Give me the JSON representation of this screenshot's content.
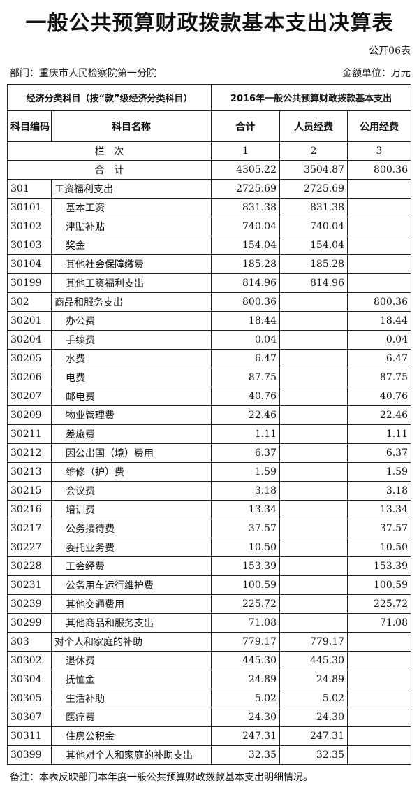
{
  "title": "一般公共预算财政拨款基本支出决算表",
  "form_no": "公开06表",
  "department": "部门：重庆市人民检察院第一分院",
  "unit": "金额单位：万元",
  "header": {
    "econ_class": "经济分类科目（按“款”级经济分类科目）",
    "budget_title": "2016年一般公共预算财政拨款基本支出",
    "code": "科目编码",
    "name": "科目名称",
    "total": "合计",
    "personnel": "人员经费",
    "public": "公用经费"
  },
  "column_row": {
    "label": "栏　次",
    "n1": "1",
    "n2": "2",
    "n3": "3"
  },
  "total_row": {
    "label": "合　计",
    "total": "4305.22",
    "personnel": "3504.87",
    "public": "800.36"
  },
  "rows": [
    {
      "code": "301",
      "name": "工资福利支出",
      "total": "2725.69",
      "personnel": "2725.69",
      "public": ""
    },
    {
      "code": "30101",
      "name": "基本工资",
      "total": "831.38",
      "personnel": "831.38",
      "public": ""
    },
    {
      "code": "30102",
      "name": "津贴补贴",
      "total": "740.04",
      "personnel": "740.04",
      "public": ""
    },
    {
      "code": "30103",
      "name": "奖金",
      "total": "154.04",
      "personnel": "154.04",
      "public": ""
    },
    {
      "code": "30104",
      "name": "其他社会保障缴费",
      "total": "185.28",
      "personnel": "185.28",
      "public": ""
    },
    {
      "code": "30199",
      "name": "其他工资福利支出",
      "total": "814.96",
      "personnel": "814.96",
      "public": ""
    },
    {
      "code": "302",
      "name": "商品和服务支出",
      "total": "800.36",
      "personnel": "",
      "public": "800.36"
    },
    {
      "code": "30201",
      "name": "办公费",
      "total": "18.44",
      "personnel": "",
      "public": "18.44"
    },
    {
      "code": "30204",
      "name": "手续费",
      "total": "0.04",
      "personnel": "",
      "public": "0.04"
    },
    {
      "code": "30205",
      "name": "水费",
      "total": "6.47",
      "personnel": "",
      "public": "6.47"
    },
    {
      "code": "30206",
      "name": "电费",
      "total": "87.75",
      "personnel": "",
      "public": "87.75"
    },
    {
      "code": "30207",
      "name": "邮电费",
      "total": "40.76",
      "personnel": "",
      "public": "40.76"
    },
    {
      "code": "30209",
      "name": "物业管理费",
      "total": "22.46",
      "personnel": "",
      "public": "22.46"
    },
    {
      "code": "30211",
      "name": "差旅费",
      "total": "1.11",
      "personnel": "",
      "public": "1.11"
    },
    {
      "code": "30212",
      "name": "因公出国（境）费用",
      "total": "6.37",
      "personnel": "",
      "public": "6.37"
    },
    {
      "code": "30213",
      "name": "维修（护）费",
      "total": "1.59",
      "personnel": "",
      "public": "1.59"
    },
    {
      "code": "30215",
      "name": "会议费",
      "total": "3.18",
      "personnel": "",
      "public": "3.18"
    },
    {
      "code": "30216",
      "name": "培训费",
      "total": "13.34",
      "personnel": "",
      "public": "13.34"
    },
    {
      "code": "30217",
      "name": "公务接待费",
      "total": "37.57",
      "personnel": "",
      "public": "37.57"
    },
    {
      "code": "30227",
      "name": "委托业务费",
      "total": "10.50",
      "personnel": "",
      "public": "10.50"
    },
    {
      "code": "30228",
      "name": "工会经费",
      "total": "153.39",
      "personnel": "",
      "public": "153.39"
    },
    {
      "code": "30231",
      "name": "公务用车运行维护费",
      "total": "100.59",
      "personnel": "",
      "public": "100.59"
    },
    {
      "code": "30239",
      "name": "其他交通费用",
      "total": "225.72",
      "personnel": "",
      "public": "225.72"
    },
    {
      "code": "30299",
      "name": "其他商品和服务支出",
      "total": "71.08",
      "personnel": "",
      "public": "71.08"
    },
    {
      "code": "303",
      "name": "对个人和家庭的补助",
      "total": "779.17",
      "personnel": "779.17",
      "public": ""
    },
    {
      "code": "30302",
      "name": "退休费",
      "total": "445.30",
      "personnel": "445.30",
      "public": ""
    },
    {
      "code": "30304",
      "name": "抚恤金",
      "total": "24.89",
      "personnel": "24.89",
      "public": ""
    },
    {
      "code": "30305",
      "name": "生活补助",
      "total": "5.02",
      "personnel": "5.02",
      "public": ""
    },
    {
      "code": "30307",
      "name": "医疗费",
      "total": "24.30",
      "personnel": "24.30",
      "public": ""
    },
    {
      "code": "30311",
      "name": "住房公积金",
      "total": "247.31",
      "personnel": "247.31",
      "public": ""
    },
    {
      "code": "30399",
      "name": "其他对个人和家庭的补助支出",
      "total": "32.35",
      "personnel": "32.35",
      "public": ""
    }
  ],
  "note": "备注：本表反映部门本年度一般公共预算财政拨款基本支出明细情况。"
}
